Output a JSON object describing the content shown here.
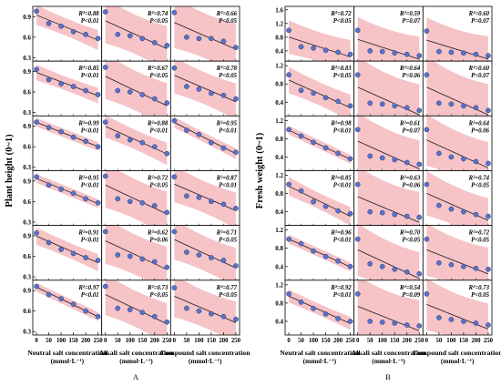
{
  "chart_data": [
    {
      "type": "scatter",
      "panel_label": "A",
      "ylabel": "Plant height (0~1)",
      "yticks": [
        "0.9",
        "0.6",
        "0.3"
      ],
      "ylim": [
        0.25,
        1.05
      ],
      "xlim": [
        -15,
        265
      ],
      "xticks": [
        "0",
        "50",
        "100",
        "150",
        "200",
        "250"
      ],
      "x": [
        0,
        50,
        100,
        150,
        200,
        250
      ],
      "column_labels": [
        {
          "line1": "Neutral salt concentration",
          "line2": "(mmol·L⁻¹)"
        },
        {
          "line1": "Alkali salt concentration",
          "line2": "(mmol·L⁻¹)"
        },
        {
          "line1": "Compound salt concentration",
          "line2": "(mmol·L⁻¹)"
        }
      ],
      "rows": [
        [
          {
            "r2": "R²=0.88",
            "p": "P<0.01",
            "y": [
              0.98,
              0.8,
              0.76,
              0.68,
              0.64,
              0.58
            ]
          },
          {
            "r2": "R²=0.74",
            "p": "P<0.05",
            "y": [
              0.97,
              0.64,
              0.62,
              0.58,
              0.52,
              0.48
            ]
          },
          {
            "r2": "R²=0.66",
            "p": "P<0.05",
            "y": [
              0.96,
              0.6,
              0.58,
              0.58,
              0.54,
              0.45
            ]
          }
        ],
        [
          {
            "r2": "R²=0.85",
            "p": "P<0.01",
            "y": [
              0.93,
              0.78,
              0.72,
              0.68,
              0.62,
              0.56
            ]
          },
          {
            "r2": "R²=0.67",
            "p": "P<0.05",
            "y": [
              0.96,
              0.62,
              0.6,
              0.56,
              0.5,
              0.44
            ]
          },
          {
            "r2": "R²=0.78",
            "p": "P<0.05",
            "y": [
              0.95,
              0.68,
              0.64,
              0.58,
              0.55,
              0.5
            ]
          }
        ],
        [
          {
            "r2": "R²=0.99",
            "p": "P<0.01",
            "y": [
              0.96,
              0.88,
              0.82,
              0.74,
              0.68,
              0.6
            ]
          },
          {
            "r2": "R²=0.88",
            "p": "P<0.01",
            "y": [
              0.96,
              0.76,
              0.7,
              0.66,
              0.6,
              0.5
            ]
          },
          {
            "r2": "R²=0.95",
            "p": "P<0.01",
            "y": [
              0.98,
              0.84,
              0.78,
              0.66,
              0.58,
              0.52
            ]
          }
        ],
        [
          {
            "r2": "R²=0.95",
            "p": "P<0.01",
            "y": [
              0.96,
              0.84,
              0.78,
              0.72,
              0.64,
              0.58
            ]
          },
          {
            "r2": "R²=0.72",
            "p": "P<0.05",
            "y": [
              0.97,
              0.64,
              0.6,
              0.58,
              0.54,
              0.44
            ]
          },
          {
            "r2": "R²=0.87",
            "p": "P<0.01",
            "y": [
              0.96,
              0.68,
              0.66,
              0.6,
              0.56,
              0.5
            ]
          }
        ],
        [
          {
            "r2": "R²=0.91",
            "p": "P<0.01",
            "y": [
              0.94,
              0.8,
              0.7,
              0.64,
              0.58,
              0.54
            ]
          },
          {
            "r2": "R²=0.62",
            "p": "P=0.06",
            "y": [
              0.96,
              0.62,
              0.6,
              0.56,
              0.52,
              0.44
            ]
          },
          {
            "r2": "R²=0.71",
            "p": "P<0.05",
            "y": [
              0.96,
              0.66,
              0.62,
              0.58,
              0.54,
              0.46
            ]
          }
        ],
        [
          {
            "r2": "R²=0.97",
            "p": "P<0.01",
            "y": [
              0.96,
              0.84,
              0.78,
              0.7,
              0.6,
              0.52
            ]
          },
          {
            "r2": "R²=0.73",
            "p": "P<0.05",
            "y": [
              0.96,
              0.64,
              0.62,
              0.58,
              0.52,
              0.44
            ]
          },
          {
            "r2": "R²=0.77",
            "p": "P<0.05",
            "y": [
              0.94,
              0.64,
              0.6,
              0.56,
              0.52,
              0.48
            ]
          }
        ]
      ]
    },
    {
      "type": "scatter",
      "panel_label": "B",
      "ylabel": "Fresh weight (0~1)",
      "yticks": [
        "1.2",
        "0.8",
        "0.4"
      ],
      "ylim": [
        0.1,
        1.3
      ],
      "xlim": [
        -15,
        265
      ],
      "xticks": [
        "0",
        "50",
        "100",
        "150",
        "200",
        "250"
      ],
      "x": [
        0,
        50,
        100,
        150,
        200,
        250
      ],
      "top_yticks": [
        "1.6",
        "1.2",
        "0.8",
        "0.4"
      ],
      "top_ylim": [
        0.1,
        1.7
      ],
      "column_labels": [
        {
          "line1": "Neutral salt concentration",
          "line2": "(mmol·L⁻¹)"
        },
        {
          "line1": "Alkali salt concentration",
          "line2": "(mmol·L⁻¹)"
        },
        {
          "line1": "Compound salt concentration",
          "line2": "(mmol·L⁻¹)"
        }
      ],
      "rows": [
        [
          {
            "r2": "R²=0.72",
            "p": "P<0.05",
            "y": [
              1.0,
              0.52,
              0.48,
              0.42,
              0.36,
              0.3
            ]
          },
          {
            "r2": "R²=0.59",
            "p": "P=0.07",
            "y": [
              1.0,
              0.4,
              0.38,
              0.34,
              0.3,
              0.26
            ]
          },
          {
            "r2": "R²=0.60",
            "p": "P=0.07",
            "y": [
              0.98,
              0.38,
              0.36,
              0.34,
              0.3,
              0.26
            ]
          }
        ],
        [
          {
            "r2": "R²=0.83",
            "p": "P<0.05",
            "y": [
              1.0,
              0.66,
              0.6,
              0.5,
              0.42,
              0.32
            ]
          },
          {
            "r2": "R²=0.64",
            "p": "P=0.06",
            "y": [
              1.0,
              0.38,
              0.36,
              0.32,
              0.28,
              0.22
            ]
          },
          {
            "r2": "R²=0.60",
            "p": "P=0.07",
            "y": [
              1.0,
              0.38,
              0.36,
              0.32,
              0.28,
              0.22
            ]
          }
        ],
        [
          {
            "r2": "R²=0.98",
            "p": "P<0.01",
            "y": [
              1.0,
              0.86,
              0.72,
              0.6,
              0.48,
              0.36
            ]
          },
          {
            "r2": "R²=0.61",
            "p": "P=0.07",
            "y": [
              1.0,
              0.42,
              0.38,
              0.34,
              0.28,
              0.24
            ]
          },
          {
            "r2": "R²=0.64",
            "p": "P=0.06",
            "y": [
              1.0,
              0.48,
              0.4,
              0.36,
              0.3,
              0.26
            ]
          }
        ],
        [
          {
            "r2": "R²=0.85",
            "p": "P<0.01",
            "y": [
              1.0,
              0.86,
              0.62,
              0.52,
              0.42,
              0.36
            ]
          },
          {
            "r2": "R²=0.63",
            "p": "P=0.06",
            "y": [
              1.0,
              0.4,
              0.38,
              0.34,
              0.3,
              0.28
            ]
          },
          {
            "r2": "R²=0.74",
            "p": "P<0.05",
            "y": [
              1.0,
              0.54,
              0.46,
              0.4,
              0.34,
              0.3
            ]
          }
        ],
        [
          {
            "r2": "R²=0.96",
            "p": "P<0.01",
            "y": [
              1.0,
              0.9,
              0.74,
              0.62,
              0.52,
              0.4
            ]
          },
          {
            "r2": "R²=0.70",
            "p": "P<0.05",
            "y": [
              1.0,
              0.46,
              0.4,
              0.34,
              0.28,
              0.24
            ]
          },
          {
            "r2": "R²=0.72",
            "p": "P<0.05",
            "y": [
              1.0,
              0.48,
              0.44,
              0.4,
              0.36,
              0.34
            ]
          }
        ],
        [
          {
            "r2": "R²=0.92",
            "p": "P<0.01",
            "y": [
              1.0,
              0.82,
              0.68,
              0.56,
              0.46,
              0.4
            ]
          },
          {
            "r2": "R²=0.54",
            "p": "P=0.09",
            "y": [
              1.0,
              0.4,
              0.38,
              0.36,
              0.32,
              0.3
            ]
          },
          {
            "r2": "R²=0.73",
            "p": "P<0.05",
            "y": [
              1.0,
              0.48,
              0.44,
              0.4,
              0.36,
              0.32
            ]
          }
        ]
      ]
    }
  ],
  "colors": {
    "band": "#f4b9bd",
    "point": "#5a73c8",
    "point_edge": "#25367a",
    "line": "#1a1a1a",
    "frame": "#000000"
  }
}
